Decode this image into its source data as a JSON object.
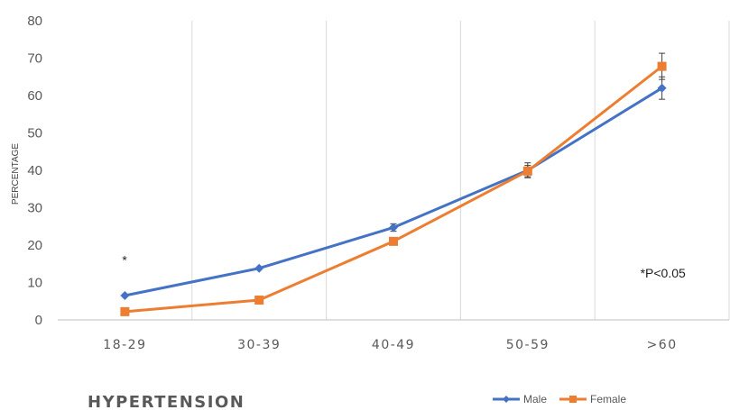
{
  "chart_data": {
    "type": "line",
    "title": "HYPERTENSION",
    "xlabel": "",
    "ylabel": "PERCENTAGE",
    "categories": [
      "18-29",
      "30-39",
      "40-49",
      "50-59",
      ">60"
    ],
    "ylim": [
      0,
      80
    ],
    "yticks": [
      0,
      10,
      20,
      30,
      40,
      50,
      60,
      70,
      80
    ],
    "grid": "vertical",
    "legend": "bottom-right",
    "series": [
      {
        "name": "Male",
        "color": "#4472C4",
        "marker": "diamond",
        "values": [
          6.5,
          13.8,
          24.7,
          40.0,
          62.0
        ],
        "errors": [
          0,
          0,
          1.0,
          2.0,
          3.0
        ]
      },
      {
        "name": "Female",
        "color": "#ED7D31",
        "marker": "square",
        "values": [
          2.2,
          5.3,
          21.0,
          39.8,
          67.8
        ],
        "errors": [
          0,
          0,
          0,
          1.5,
          3.5
        ]
      }
    ],
    "annotations": [
      {
        "text": "*",
        "category": "18-29",
        "y": 16
      },
      {
        "text": "*P<0.05",
        "category": ">60",
        "y": 12.5
      }
    ]
  }
}
